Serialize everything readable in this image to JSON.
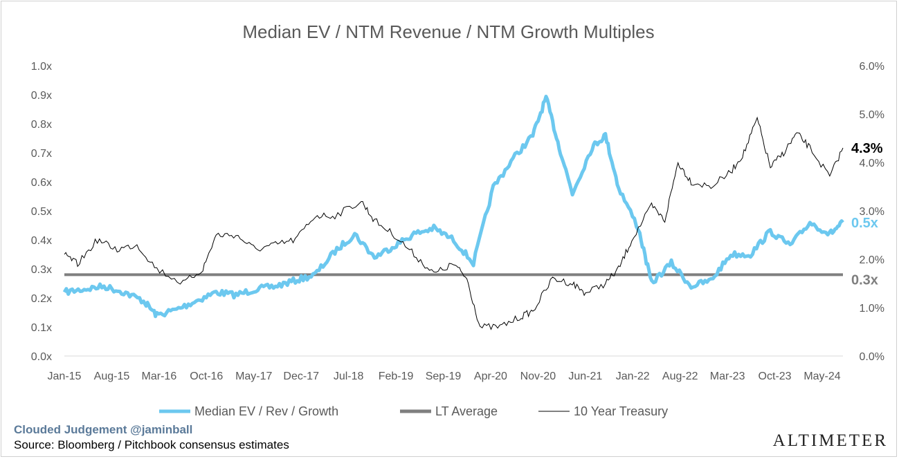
{
  "chart_data": {
    "type": "line",
    "title": "Median EV / NTM Revenue / NTM Growth Multiples",
    "x_tick_labels": [
      "Jan-15",
      "Aug-15",
      "Mar-16",
      "Oct-16",
      "May-17",
      "Dec-17",
      "Jul-18",
      "Feb-19",
      "Sep-19",
      "Apr-20",
      "Nov-20",
      "Jun-21",
      "Jan-22",
      "Aug-22",
      "Mar-23",
      "Oct-23",
      "May-24"
    ],
    "x_range": [
      "2015-01",
      "2024-11"
    ],
    "y_left": {
      "range": [
        0,
        1.0
      ],
      "tick_labels": [
        "0.0x",
        "0.1x",
        "0.2x",
        "0.3x",
        "0.4x",
        "0.5x",
        "0.6x",
        "0.7x",
        "0.8x",
        "0.9x",
        "1.0x"
      ]
    },
    "y_right": {
      "range": [
        0,
        6.0
      ],
      "tick_labels": [
        "0.0%",
        "1.0%",
        "2.0%",
        "3.0%",
        "4.0%",
        "5.0%",
        "6.0%"
      ]
    },
    "grid": false,
    "legend_position": "bottom",
    "series": [
      {
        "name": "Median EV / Rev / Growth",
        "axis": "left",
        "color": "#6cc8ef",
        "points": [
          [
            "2015-01",
            0.22
          ],
          [
            "2015-04",
            0.23
          ],
          [
            "2015-07",
            0.24
          ],
          [
            "2015-10",
            0.22
          ],
          [
            "2016-01",
            0.19
          ],
          [
            "2016-03",
            0.14
          ],
          [
            "2016-06",
            0.16
          ],
          [
            "2016-09",
            0.19
          ],
          [
            "2016-12",
            0.22
          ],
          [
            "2017-03",
            0.21
          ],
          [
            "2017-06",
            0.23
          ],
          [
            "2017-09",
            0.24
          ],
          [
            "2017-12",
            0.26
          ],
          [
            "2018-03",
            0.28
          ],
          [
            "2018-06",
            0.36
          ],
          [
            "2018-09",
            0.42
          ],
          [
            "2018-12",
            0.34
          ],
          [
            "2019-03",
            0.38
          ],
          [
            "2019-06",
            0.42
          ],
          [
            "2019-09",
            0.44
          ],
          [
            "2019-12",
            0.4
          ],
          [
            "2020-03",
            0.32
          ],
          [
            "2020-06",
            0.58
          ],
          [
            "2020-09",
            0.68
          ],
          [
            "2020-12",
            0.76
          ],
          [
            "2021-02",
            0.89
          ],
          [
            "2021-04",
            0.72
          ],
          [
            "2021-06",
            0.56
          ],
          [
            "2021-09",
            0.72
          ],
          [
            "2021-11",
            0.76
          ],
          [
            "2022-01",
            0.58
          ],
          [
            "2022-04",
            0.44
          ],
          [
            "2022-06",
            0.25
          ],
          [
            "2022-09",
            0.32
          ],
          [
            "2022-12",
            0.24
          ],
          [
            "2023-03",
            0.26
          ],
          [
            "2023-06",
            0.35
          ],
          [
            "2023-09",
            0.35
          ],
          [
            "2023-12",
            0.43
          ],
          [
            "2024-03",
            0.38
          ],
          [
            "2024-06",
            0.46
          ],
          [
            "2024-09",
            0.42
          ],
          [
            "2024-11",
            0.46
          ]
        ]
      },
      {
        "name": "LT Average",
        "axis": "left",
        "color": "#7f7f7f",
        "points": [
          [
            "2015-01",
            0.28
          ],
          [
            "2024-11",
            0.28
          ]
        ]
      },
      {
        "name": "10 Year Treasury",
        "axis": "right",
        "color": "#000000",
        "points": [
          [
            "2015-01",
            2.1
          ],
          [
            "2015-03",
            1.9
          ],
          [
            "2015-06",
            2.4
          ],
          [
            "2015-09",
            2.2
          ],
          [
            "2015-12",
            2.3
          ],
          [
            "2016-03",
            1.8
          ],
          [
            "2016-07",
            1.5
          ],
          [
            "2016-10",
            1.8
          ],
          [
            "2016-12",
            2.5
          ],
          [
            "2017-03",
            2.5
          ],
          [
            "2017-06",
            2.2
          ],
          [
            "2017-09",
            2.3
          ],
          [
            "2017-12",
            2.4
          ],
          [
            "2018-03",
            2.9
          ],
          [
            "2018-06",
            2.9
          ],
          [
            "2018-10",
            3.2
          ],
          [
            "2018-12",
            2.8
          ],
          [
            "2019-03",
            2.5
          ],
          [
            "2019-06",
            2.1
          ],
          [
            "2019-09",
            1.7
          ],
          [
            "2019-12",
            1.9
          ],
          [
            "2020-02",
            1.6
          ],
          [
            "2020-04",
            0.6
          ],
          [
            "2020-07",
            0.6
          ],
          [
            "2020-10",
            0.8
          ],
          [
            "2020-12",
            0.93
          ],
          [
            "2021-03",
            1.6
          ],
          [
            "2021-06",
            1.5
          ],
          [
            "2021-08",
            1.3
          ],
          [
            "2021-11",
            1.5
          ],
          [
            "2022-01",
            1.8
          ],
          [
            "2022-03",
            2.4
          ],
          [
            "2022-06",
            3.1
          ],
          [
            "2022-08",
            2.8
          ],
          [
            "2022-10",
            4.0
          ],
          [
            "2022-12",
            3.6
          ],
          [
            "2023-03",
            3.5
          ],
          [
            "2023-06",
            3.8
          ],
          [
            "2023-08",
            4.2
          ],
          [
            "2023-10",
            4.9
          ],
          [
            "2023-12",
            3.9
          ],
          [
            "2024-02",
            4.2
          ],
          [
            "2024-04",
            4.6
          ],
          [
            "2024-06",
            4.3
          ],
          [
            "2024-09",
            3.7
          ],
          [
            "2024-11",
            4.3
          ]
        ]
      }
    ],
    "end_labels": [
      {
        "text": "4.3%",
        "color": "#000000"
      },
      {
        "text": "0.5x",
        "color": "#6cc8ef"
      },
      {
        "text": "0.3x",
        "color": "#7f7f7f"
      }
    ]
  },
  "footer": {
    "brand": "Clouded Judgement @jaminball",
    "source": "Source: Bloomberg / Pitchbook consensus estimates",
    "logo": "ALTIMETER"
  }
}
